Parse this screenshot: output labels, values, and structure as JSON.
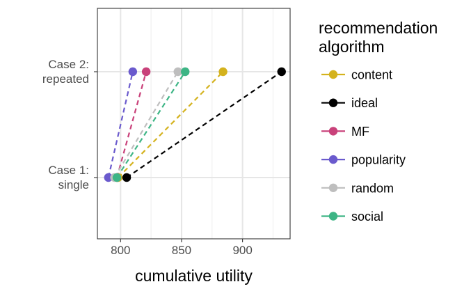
{
  "chart_data": {
    "type": "scatter",
    "title": "",
    "xlabel": "cumulative utility",
    "ylabel": "",
    "xlim": [
      781,
      939
    ],
    "x_ticks": [
      800,
      850,
      900
    ],
    "x_tick_labels": [
      "800",
      "850",
      "900"
    ],
    "categories": [
      "Case 1:\nsingle",
      "Case 2:\nrepeated"
    ],
    "category_lines": [
      [
        "Case 1:",
        "single"
      ],
      [
        "Case 2:",
        "repeated"
      ]
    ],
    "grid": true,
    "legend": {
      "title_lines": [
        "recommendation",
        "algorithm"
      ],
      "placement": "right"
    },
    "connector_style": "dashed",
    "series": [
      {
        "name": "content",
        "color": "#D4B21D",
        "values": [
          798,
          884
        ]
      },
      {
        "name": "ideal",
        "color": "#000000",
        "values": [
          805,
          932
        ]
      },
      {
        "name": "MF",
        "color": "#C9417A",
        "values": [
          797,
          821
        ]
      },
      {
        "name": "popularity",
        "color": "#6A5ACD",
        "values": [
          790,
          810
        ]
      },
      {
        "name": "random",
        "color": "#BEBEBE",
        "values": [
          795,
          847
        ]
      },
      {
        "name": "social",
        "color": "#3DB585",
        "values": [
          797,
          853
        ]
      }
    ]
  }
}
